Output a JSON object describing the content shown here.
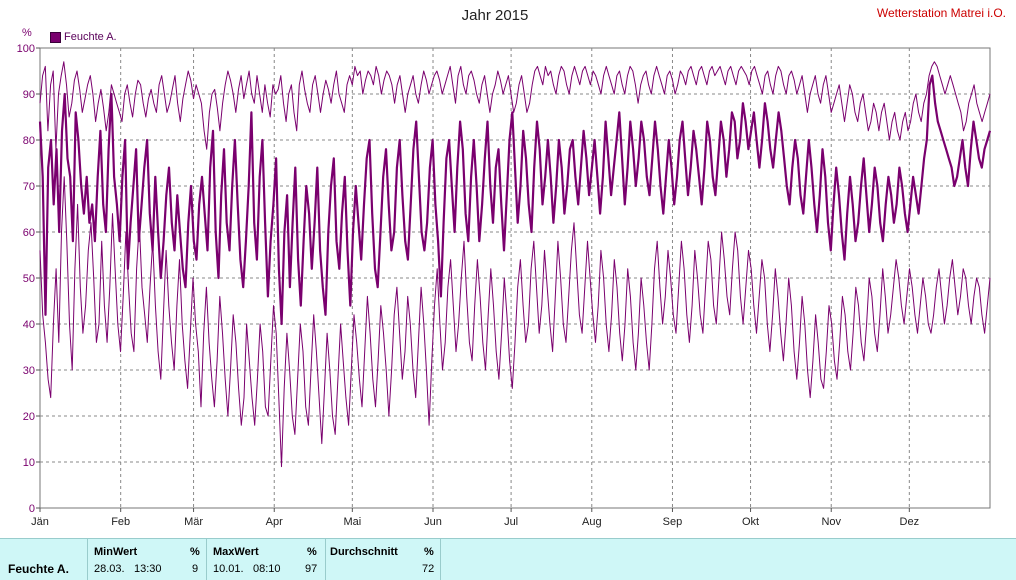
{
  "title": "Jahr 2015",
  "station": "Wetterstation Matrei i.O.",
  "unit": "%",
  "legend": {
    "label": "Feuchte A.",
    "color": "#7a006e"
  },
  "chart_data": {
    "type": "line",
    "title": "Jahr 2015",
    "ylim": [
      0,
      100
    ],
    "yticks": [
      0,
      10,
      20,
      30,
      40,
      50,
      60,
      70,
      80,
      90,
      100
    ],
    "xlim": [
      0,
      365
    ],
    "month_labels": [
      "Jän",
      "Feb",
      "Mär",
      "Apr",
      "Mai",
      "Jun",
      "Jul",
      "Aug",
      "Sep",
      "Okt",
      "Nov",
      "Dez"
    ],
    "month_day_offsets": [
      0,
      31,
      59,
      90,
      120,
      151,
      181,
      212,
      243,
      273,
      304,
      334
    ],
    "grid": true,
    "legend_position": "top-left",
    "series": [
      {
        "name": "Feuchte A.",
        "role": "max",
        "color": "#7a006e",
        "values": [
          88,
          94,
          96,
          82,
          92,
          95,
          78,
          90,
          94,
          97,
          92,
          85,
          88,
          93,
          95,
          91,
          86,
          89,
          92,
          94,
          90,
          84,
          88,
          91,
          87,
          82,
          86,
          92,
          90,
          88,
          86,
          84,
          90,
          92,
          88,
          85,
          90,
          93,
          92,
          88,
          85,
          89,
          91,
          88,
          86,
          92,
          94,
          90,
          86,
          88,
          91,
          94,
          88,
          84,
          89,
          92,
          95,
          93,
          89,
          92,
          90,
          88,
          82,
          78,
          86,
          90,
          91,
          87,
          82,
          88,
          92,
          95,
          93,
          90,
          86,
          91,
          94,
          89,
          92,
          95,
          90,
          88,
          94,
          90,
          86,
          92,
          88,
          85,
          92,
          90,
          91,
          94,
          88,
          84,
          90,
          92,
          86,
          82,
          92,
          95,
          91,
          88,
          86,
          92,
          94,
          90,
          86,
          90,
          93,
          91,
          88,
          92,
          95,
          90,
          88,
          86,
          92,
          94,
          92,
          96,
          94,
          95,
          90,
          93,
          95,
          94,
          92,
          96,
          94,
          90,
          93,
          95,
          94,
          92,
          88,
          92,
          94,
          90,
          86,
          90,
          92,
          94,
          90,
          88,
          92,
          95,
          93,
          90,
          92,
          94,
          95,
          93,
          90,
          92,
          94,
          96,
          92,
          88,
          94,
          96,
          92,
          90,
          94,
          95,
          93,
          90,
          88,
          92,
          94,
          90,
          86,
          90,
          92,
          95,
          93,
          90,
          92,
          94,
          90,
          86,
          88,
          92,
          94,
          90,
          86,
          88,
          92,
          95,
          96,
          94,
          92,
          96,
          94,
          95,
          92,
          90,
          94,
          96,
          95,
          92,
          90,
          94,
          96,
          94,
          92,
          95,
          96,
          94,
          92,
          95,
          94,
          92,
          90,
          94,
          96,
          94,
          92,
          90,
          94,
          95,
          92,
          90,
          94,
          96,
          95,
          92,
          88,
          92,
          94,
          95,
          92,
          90,
          94,
          96,
          94,
          92,
          90,
          94,
          95,
          93,
          90,
          92,
          95,
          94,
          92,
          95,
          96,
          94,
          92,
          95,
          96,
          94,
          92,
          95,
          96,
          94,
          95,
          96,
          94,
          92,
          95,
          96,
          94,
          92,
          95,
          96,
          95,
          94,
          92,
          95,
          96,
          94,
          92,
          90,
          94,
          95,
          92,
          90,
          94,
          96,
          95,
          92,
          90,
          94,
          95,
          93,
          90,
          92,
          94,
          90,
          86,
          90,
          92,
          94,
          90,
          88,
          92,
          94,
          90,
          86,
          88,
          90,
          92,
          88,
          84,
          88,
          92,
          90,
          86,
          84,
          88,
          90,
          86,
          82,
          84,
          88,
          86,
          82,
          86,
          88,
          84,
          80,
          84,
          86,
          82,
          80,
          84,
          86,
          82,
          84,
          88,
          90,
          86,
          84,
          88,
          90,
          94,
          96,
          97,
          96,
          94,
          92,
          90,
          92,
          94,
          92,
          90,
          88,
          86,
          82,
          84,
          88,
          90,
          92,
          88,
          86,
          84,
          86,
          88,
          90
        ]
      },
      {
        "name": "Feuchte A.",
        "role": "mean",
        "color": "#7a006e",
        "values": [
          84,
          72,
          42,
          74,
          80,
          66,
          78,
          60,
          82,
          90,
          76,
          72,
          58,
          86,
          80,
          70,
          64,
          72,
          62,
          66,
          58,
          72,
          82,
          66,
          60,
          78,
          90,
          72,
          66,
          58,
          72,
          80,
          52,
          62,
          70,
          78,
          58,
          66,
          74,
          80,
          64,
          56,
          72,
          60,
          50,
          58,
          68,
          74,
          62,
          56,
          68,
          60,
          52,
          48,
          62,
          70,
          58,
          54,
          66,
          72,
          64,
          56,
          74,
          82,
          60,
          50,
          68,
          78,
          62,
          56,
          70,
          80,
          66,
          54,
          48,
          58,
          70,
          86,
          62,
          54,
          72,
          80,
          62,
          46,
          58,
          66,
          76,
          52,
          40,
          60,
          68,
          48,
          62,
          74,
          54,
          44,
          58,
          70,
          64,
          52,
          62,
          74,
          56,
          48,
          42,
          60,
          70,
          76,
          58,
          52,
          64,
          72,
          56,
          44,
          60,
          70,
          62,
          54,
          66,
          76,
          80,
          64,
          52,
          48,
          60,
          72,
          78,
          66,
          56,
          60,
          74,
          80,
          68,
          58,
          54,
          66,
          78,
          84,
          72,
          60,
          56,
          62,
          74,
          80,
          66,
          58,
          46,
          62,
          76,
          80,
          70,
          60,
          74,
          84,
          78,
          64,
          58,
          72,
          80,
          70,
          58,
          66,
          76,
          84,
          70,
          62,
          74,
          78,
          66,
          56,
          68,
          80,
          86,
          74,
          62,
          70,
          82,
          76,
          66,
          60,
          74,
          84,
          78,
          66,
          72,
          80,
          72,
          62,
          70,
          80,
          74,
          64,
          70,
          78,
          80,
          72,
          66,
          74,
          82,
          76,
          68,
          74,
          80,
          72,
          64,
          72,
          84,
          76,
          68,
          74,
          80,
          86,
          76,
          66,
          74,
          84,
          78,
          70,
          76,
          84,
          80,
          72,
          68,
          76,
          84,
          78,
          70,
          64,
          72,
          80,
          74,
          66,
          72,
          80,
          84,
          76,
          68,
          74,
          82,
          78,
          72,
          66,
          74,
          84,
          80,
          72,
          68,
          76,
          84,
          80,
          72,
          78,
          86,
          84,
          76,
          80,
          88,
          84,
          78,
          82,
          86,
          80,
          74,
          80,
          88,
          84,
          78,
          74,
          80,
          86,
          82,
          76,
          70,
          66,
          74,
          80,
          76,
          68,
          64,
          72,
          80,
          74,
          66,
          60,
          68,
          78,
          72,
          62,
          56,
          66,
          74,
          68,
          60,
          54,
          64,
          72,
          66,
          58,
          62,
          70,
          76,
          68,
          60,
          66,
          74,
          70,
          62,
          58,
          66,
          72,
          68,
          62,
          66,
          74,
          70,
          64,
          60,
          66,
          72,
          68,
          64,
          70,
          76,
          80,
          92,
          94,
          88,
          84,
          82,
          80,
          78,
          76,
          74,
          70,
          72,
          76,
          80,
          74,
          70,
          78,
          84,
          80,
          76,
          74,
          78,
          80,
          82
        ]
      },
      {
        "name": "Feuchte A.",
        "role": "min",
        "color": "#7a006e",
        "values": [
          56,
          42,
          36,
          28,
          24,
          40,
          52,
          36,
          60,
          72,
          58,
          40,
          30,
          52,
          66,
          48,
          38,
          44,
          56,
          62,
          50,
          36,
          40,
          58,
          44,
          36,
          48,
          64,
          52,
          40,
          34,
          46,
          60,
          48,
          38,
          34,
          52,
          62,
          48,
          42,
          36,
          48,
          58,
          44,
          34,
          28,
          42,
          56,
          44,
          36,
          30,
          44,
          54,
          40,
          32,
          26,
          38,
          50,
          40,
          34,
          22,
          38,
          48,
          36,
          28,
          22,
          32,
          46,
          38,
          28,
          20,
          30,
          42,
          36,
          26,
          18,
          24,
          40,
          32,
          24,
          18,
          28,
          40,
          34,
          22,
          20,
          32,
          44,
          38,
          24,
          9,
          26,
          38,
          30,
          20,
          16,
          28,
          40,
          34,
          22,
          18,
          30,
          42,
          34,
          24,
          14,
          26,
          38,
          30,
          20,
          16,
          28,
          40,
          32,
          24,
          18,
          30,
          42,
          36,
          28,
          22,
          34,
          46,
          38,
          28,
          22,
          32,
          44,
          38,
          30,
          20,
          30,
          42,
          48,
          38,
          28,
          34,
          46,
          40,
          30,
          24,
          36,
          48,
          40,
          30,
          18,
          32,
          44,
          52,
          40,
          30,
          36,
          48,
          54,
          44,
          34,
          40,
          50,
          58,
          46,
          36,
          32,
          44,
          54,
          46,
          36,
          30,
          42,
          52,
          44,
          34,
          28,
          38,
          50,
          42,
          32,
          26,
          36,
          48,
          54,
          44,
          36,
          40,
          52,
          58,
          48,
          38,
          44,
          56,
          48,
          40,
          34,
          46,
          58,
          50,
          40,
          36,
          46,
          56,
          62,
          52,
          42,
          38,
          48,
          58,
          50,
          42,
          36,
          44,
          56,
          50,
          40,
          34,
          42,
          54,
          48,
          38,
          32,
          40,
          52,
          46,
          36,
          30,
          38,
          50,
          44,
          36,
          30,
          40,
          52,
          58,
          48,
          40,
          46,
          56,
          50,
          42,
          38,
          48,
          58,
          52,
          42,
          36,
          44,
          56,
          50,
          42,
          38,
          48,
          58,
          54,
          44,
          40,
          50,
          60,
          54,
          46,
          42,
          52,
          60,
          56,
          46,
          40,
          48,
          56,
          52,
          44,
          38,
          46,
          54,
          50,
          40,
          34,
          42,
          52,
          46,
          38,
          32,
          40,
          50,
          44,
          34,
          28,
          36,
          46,
          40,
          30,
          24,
          32,
          42,
          36,
          28,
          26,
          34,
          44,
          40,
          32,
          28,
          36,
          46,
          42,
          34,
          30,
          38,
          48,
          44,
          36,
          32,
          40,
          50,
          46,
          38,
          34,
          42,
          52,
          46,
          38,
          42,
          48,
          54,
          50,
          44,
          40,
          46,
          52,
          48,
          42,
          38,
          44,
          50,
          46,
          40,
          38,
          42,
          48,
          52,
          46,
          40,
          44,
          50,
          54,
          48,
          42,
          46,
          52,
          50,
          44,
          40,
          46,
          50,
          48,
          42,
          38,
          44,
          50
        ]
      }
    ]
  },
  "stats": {
    "row_label": "Feuchte A.",
    "min": {
      "header": "MinWert",
      "unit": "%",
      "date": "28.03.",
      "time": "13:30",
      "value": "9"
    },
    "max": {
      "header": "MaxWert",
      "unit": "%",
      "date": "10.01.",
      "time": "08:10",
      "value": "97"
    },
    "avg": {
      "header": "Durchschnitt",
      "unit": "%",
      "value": "72"
    }
  }
}
